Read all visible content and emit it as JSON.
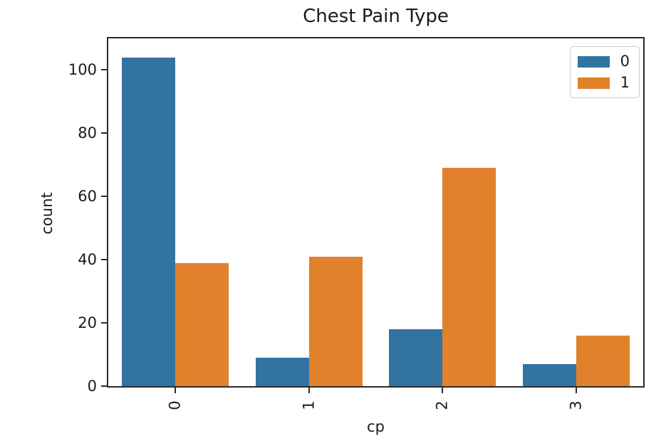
{
  "chart_data": {
    "type": "bar",
    "title": "Chest Pain Type",
    "xlabel": "cp",
    "ylabel": "count",
    "categories": [
      "0",
      "1",
      "2",
      "3"
    ],
    "series": [
      {
        "name": "0",
        "color": "#3274a1",
        "values": [
          104,
          9,
          18,
          7
        ]
      },
      {
        "name": "1",
        "color": "#e1812c",
        "values": [
          39,
          41,
          69,
          16
        ]
      }
    ],
    "yticks": [
      0,
      20,
      40,
      60,
      80,
      100
    ],
    "ylim": [
      0,
      110
    ],
    "xtick_rotation": 90,
    "grid": false,
    "legend_position": "upper right",
    "legend_labels": [
      "0",
      "1"
    ]
  },
  "colors": {
    "series_0": "#3274a1",
    "series_1": "#e1812c",
    "spine": "#2b2b2b",
    "text": "#1a1a1a",
    "legend_border": "#cccccc",
    "background": "#ffffff"
  }
}
